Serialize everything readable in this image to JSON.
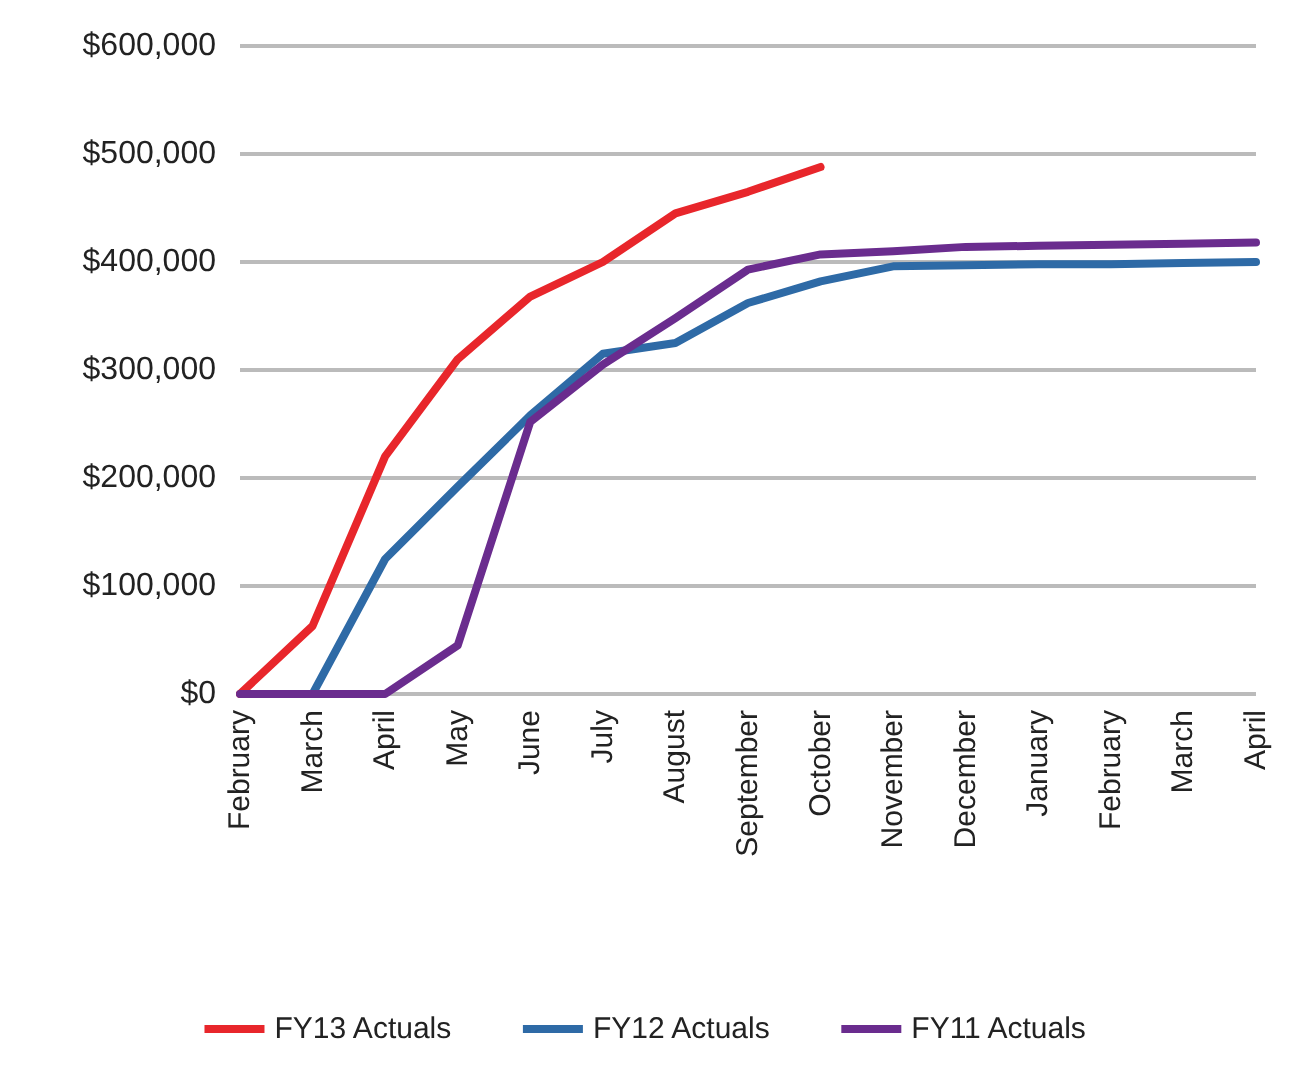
{
  "chart_data": {
    "type": "line",
    "categories": [
      "February",
      "March",
      "April",
      "May",
      "June",
      "July",
      "August",
      "September",
      "October",
      "November",
      "December",
      "January",
      "February",
      "March",
      "April"
    ],
    "series": [
      {
        "name": "FY13 Actuals",
        "color": "#e8262b",
        "values": [
          0,
          63000,
          220000,
          310000,
          368000,
          400000,
          445000,
          465000,
          488000,
          null,
          null,
          null,
          null,
          null,
          null
        ]
      },
      {
        "name": "FY12 Actuals",
        "color": "#2e6aa6",
        "values": [
          null,
          0,
          125000,
          192000,
          258000,
          315000,
          325000,
          362000,
          382000,
          396000,
          397000,
          398000,
          398000,
          399000,
          400000
        ]
      },
      {
        "name": "FY11 Actuals",
        "color": "#6a2c8e",
        "values": [
          0,
          0,
          0,
          45000,
          252000,
          305000,
          348000,
          393000,
          407000,
          410000,
          414000,
          415000,
          416000,
          417000,
          418000
        ]
      }
    ],
    "ylim": [
      0,
      600000
    ],
    "yticks": [
      {
        "value": 0,
        "label": "$0"
      },
      {
        "value": 100000,
        "label": "$100,000"
      },
      {
        "value": 200000,
        "label": "$200,000"
      },
      {
        "value": 300000,
        "label": "$300,000"
      },
      {
        "value": 400000,
        "label": "$400,000"
      },
      {
        "value": 500000,
        "label": "$500,000"
      },
      {
        "value": 600000,
        "label": "$600,000"
      }
    ],
    "grid": "y",
    "legend": "bottom",
    "marker": "none",
    "line_style": "solid"
  }
}
